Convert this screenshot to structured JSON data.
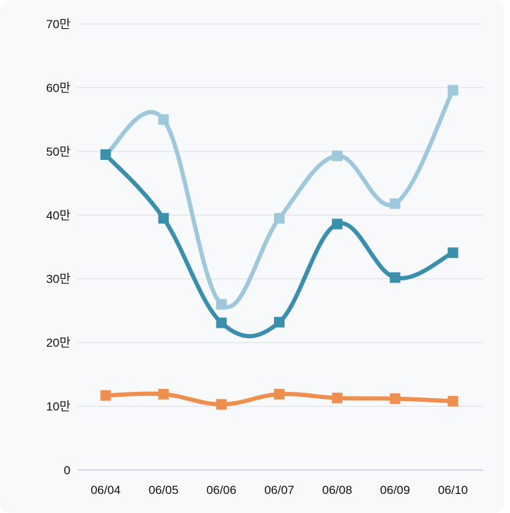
{
  "chart_data": {
    "type": "line",
    "categories": [
      "06/04",
      "06/05",
      "06/06",
      "06/07",
      "06/08",
      "06/09",
      "06/10"
    ],
    "series": [
      {
        "color": "#9ec8db",
        "values": [
          49.5,
          55.0,
          26.0,
          39.5,
          49.3,
          41.8,
          59.6
        ]
      },
      {
        "color": "#3a8fad",
        "values": [
          49.5,
          39.5,
          23.1,
          23.2,
          38.6,
          30.2,
          34.1
        ]
      },
      {
        "color": "#ef8f4f",
        "values": [
          11.7,
          11.9,
          10.3,
          11.9,
          11.3,
          11.2,
          10.8
        ]
      }
    ],
    "ylim": [
      0,
      70
    ],
    "yticks": [
      {
        "value": 0,
        "label": "0"
      },
      {
        "value": 10,
        "label": "10만"
      },
      {
        "value": 20,
        "label": "20만"
      },
      {
        "value": 30,
        "label": "30만"
      },
      {
        "value": 40,
        "label": "40만"
      },
      {
        "value": 50,
        "label": "50만"
      },
      {
        "value": 60,
        "label": "60만"
      },
      {
        "value": 70,
        "label": "70만"
      }
    ],
    "grid": true,
    "legend": "none"
  }
}
